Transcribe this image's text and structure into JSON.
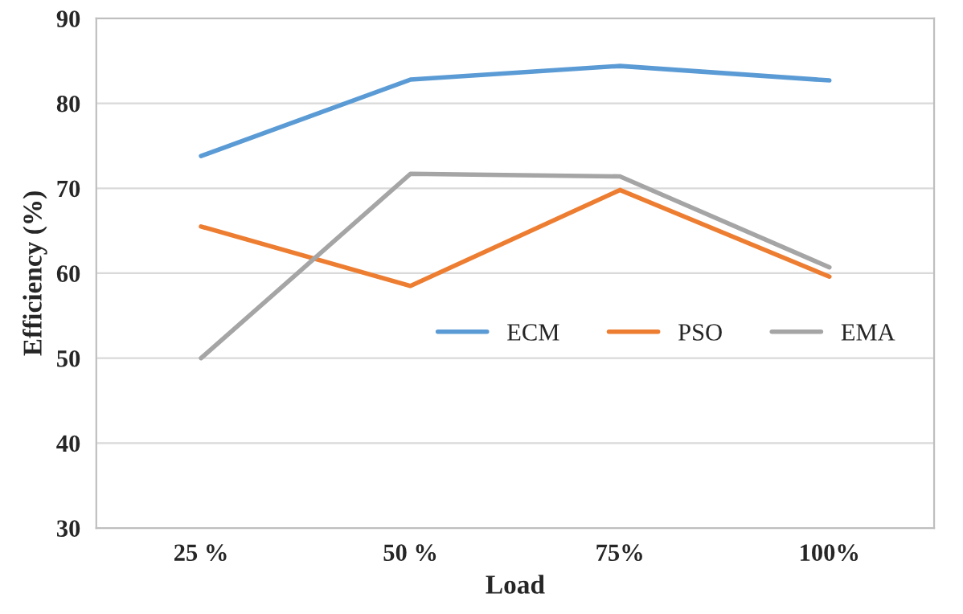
{
  "chart_data": {
    "type": "line",
    "xlabel": "Load",
    "ylabel": "Efficiency (%)",
    "categories": [
      "25 %",
      "50 %",
      "75%",
      "100%"
    ],
    "series": [
      {
        "name": "ECM",
        "color": "#5b9bd5",
        "values": [
          73.8,
          82.8,
          84.4,
          82.7
        ]
      },
      {
        "name": "PSO",
        "color": "#ed7d31",
        "values": [
          65.5,
          58.5,
          69.8,
          59.6
        ]
      },
      {
        "name": "EMA",
        "color": "#a5a5a5",
        "values": [
          50,
          71.7,
          71.4,
          60.7
        ]
      }
    ],
    "ylim": [
      30,
      90
    ],
    "yticks": [
      30,
      40,
      50,
      60,
      70,
      80,
      90
    ],
    "grid": "y",
    "legend": "right",
    "marker": "none",
    "line_style": "solid"
  }
}
